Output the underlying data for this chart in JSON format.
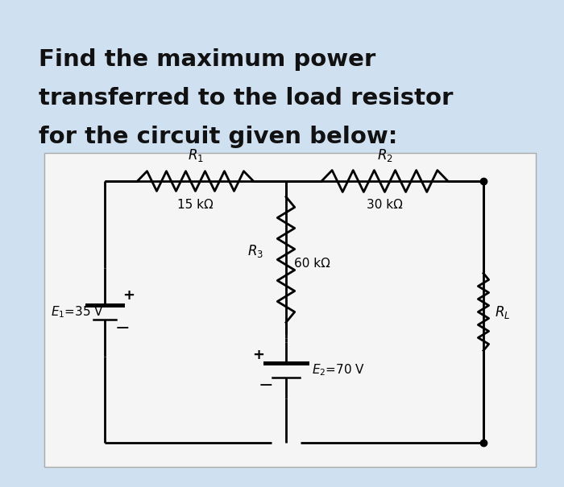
{
  "background_color": "#cfe0f0",
  "circuit_bg": "#f5f5f5",
  "title_lines": [
    "Find the maximum power",
    "transferred to the load resistor",
    "for the circuit given below:"
  ],
  "title_fontsize": 21,
  "title_color": "#111111",
  "title_fontweight": "bold",
  "R1_label": "R₁",
  "R1_val": "15 kΩ",
  "R2_label": "R₂",
  "R2_val": "30 kΩ",
  "R3_label": "R₃",
  "R3_val": "60 kΩ",
  "RL_label": "Rₗ",
  "E1_label": "E₁=35 V",
  "E2_label": "E₂=70 V",
  "line_color": "#000000",
  "line_width": 2.0,
  "label_fontsize": 12,
  "val_fontsize": 11
}
